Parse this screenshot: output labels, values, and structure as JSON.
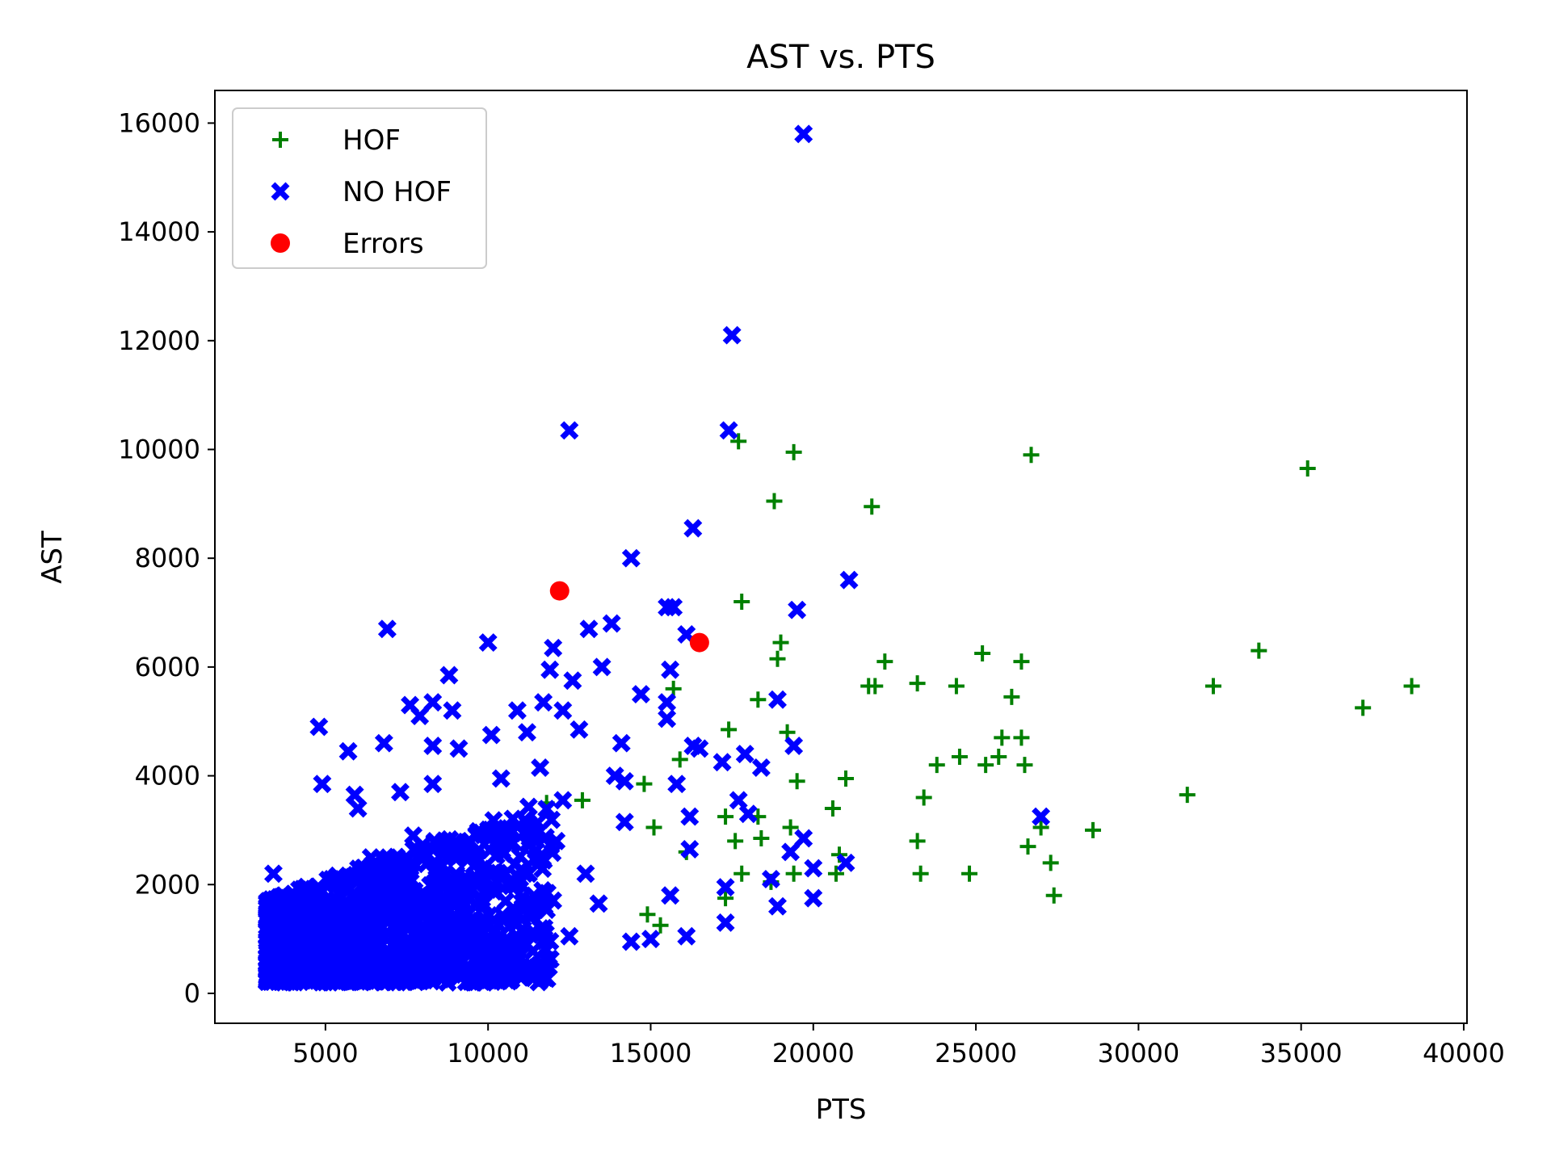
{
  "chart_data": {
    "type": "scatter",
    "title": "AST vs. PTS",
    "xlabel": "PTS",
    "ylabel": "AST",
    "xlim": [
      1600,
      40100
    ],
    "ylim": [
      -550,
      16600
    ],
    "xticks": [
      "5000",
      "10000",
      "15000",
      "20000",
      "25000",
      "30000",
      "35000",
      "40000"
    ],
    "yticks": [
      "0",
      "2000",
      "4000",
      "6000",
      "8000",
      "10000",
      "12000",
      "14000",
      "16000"
    ],
    "grid": false,
    "legend_position": "upper-left",
    "colors": {
      "HOF": "#008000",
      "NO HOF": "#0000ff",
      "Errors": "#ff0000"
    },
    "series": [
      {
        "name": "HOF",
        "marker": "plus",
        "points": [
          [
            17700,
            10150
          ],
          [
            19400,
            9950
          ],
          [
            26700,
            9900
          ],
          [
            35200,
            9650
          ],
          [
            18800,
            9050
          ],
          [
            21800,
            8950
          ],
          [
            17800,
            7200
          ],
          [
            19000,
            6450
          ],
          [
            18900,
            6150
          ],
          [
            22200,
            6100
          ],
          [
            25200,
            6250
          ],
          [
            26400,
            6100
          ],
          [
            33700,
            6300
          ],
          [
            21700,
            5650
          ],
          [
            21900,
            5650
          ],
          [
            23200,
            5700
          ],
          [
            24400,
            5650
          ],
          [
            32300,
            5650
          ],
          [
            38400,
            5650
          ],
          [
            26100,
            5450
          ],
          [
            36900,
            5250
          ],
          [
            18300,
            5400
          ],
          [
            17400,
            4850
          ],
          [
            19200,
            4800
          ],
          [
            25800,
            4700
          ],
          [
            26400,
            4700
          ],
          [
            23800,
            4200
          ],
          [
            24500,
            4350
          ],
          [
            25700,
            4350
          ],
          [
            25300,
            4200
          ],
          [
            26500,
            4200
          ],
          [
            15900,
            4300
          ],
          [
            14800,
            3850
          ],
          [
            19500,
            3900
          ],
          [
            21000,
            3950
          ],
          [
            23400,
            3600
          ],
          [
            31500,
            3650
          ],
          [
            11800,
            3500
          ],
          [
            20600,
            3400
          ],
          [
            17300,
            3250
          ],
          [
            18300,
            3250
          ],
          [
            27000,
            3050
          ],
          [
            28600,
            3000
          ],
          [
            19300,
            3050
          ],
          [
            15100,
            3050
          ],
          [
            18400,
            2850
          ],
          [
            17600,
            2800
          ],
          [
            23200,
            2800
          ],
          [
            26600,
            2700
          ],
          [
            27300,
            2400
          ],
          [
            20800,
            2550
          ],
          [
            19400,
            2200
          ],
          [
            17800,
            2200
          ],
          [
            20700,
            2200
          ],
          [
            23300,
            2200
          ],
          [
            24800,
            2200
          ],
          [
            18700,
            2050
          ],
          [
            27400,
            1800
          ],
          [
            17300,
            1750
          ],
          [
            14900,
            1450
          ],
          [
            15300,
            1250
          ],
          [
            15700,
            5600
          ],
          [
            12900,
            3550
          ],
          [
            16100,
            2600
          ]
        ]
      },
      {
        "name": "NO HOF",
        "marker": "x",
        "points": [
          [
            19700,
            15800
          ],
          [
            17500,
            12100
          ],
          [
            12500,
            10350
          ],
          [
            17400,
            10350
          ],
          [
            16300,
            8550
          ],
          [
            14400,
            8000
          ],
          [
            21100,
            7600
          ],
          [
            15500,
            7100
          ],
          [
            15700,
            7100
          ],
          [
            19500,
            7050
          ],
          [
            6900,
            6700
          ],
          [
            13100,
            6700
          ],
          [
            13800,
            6800
          ],
          [
            16100,
            6600
          ],
          [
            10000,
            6450
          ],
          [
            12000,
            6350
          ],
          [
            13500,
            6000
          ],
          [
            11900,
            5950
          ],
          [
            15600,
            5950
          ],
          [
            12600,
            5750
          ],
          [
            8800,
            5850
          ],
          [
            14700,
            5500
          ],
          [
            15500,
            5350
          ],
          [
            15500,
            5050
          ],
          [
            18900,
            5400
          ],
          [
            8300,
            5350
          ],
          [
            7600,
            5300
          ],
          [
            11700,
            5350
          ],
          [
            10900,
            5200
          ],
          [
            8900,
            5200
          ],
          [
            12300,
            5200
          ],
          [
            7900,
            5100
          ],
          [
            4800,
            4900
          ],
          [
            11200,
            4800
          ],
          [
            12800,
            4850
          ],
          [
            10100,
            4750
          ],
          [
            5700,
            4450
          ],
          [
            6800,
            4600
          ],
          [
            8300,
            4550
          ],
          [
            9100,
            4500
          ],
          [
            14100,
            4600
          ],
          [
            16300,
            4550
          ],
          [
            16500,
            4500
          ],
          [
            19400,
            4550
          ],
          [
            17900,
            4400
          ],
          [
            11600,
            4150
          ],
          [
            10400,
            3950
          ],
          [
            13900,
            4000
          ],
          [
            14200,
            3900
          ],
          [
            15800,
            3850
          ],
          [
            17200,
            4250
          ],
          [
            18400,
            4150
          ],
          [
            8300,
            3850
          ],
          [
            4900,
            3850
          ],
          [
            5900,
            3650
          ],
          [
            7300,
            3700
          ],
          [
            6000,
            3400
          ],
          [
            12300,
            3550
          ],
          [
            17700,
            3550
          ],
          [
            18000,
            3300
          ],
          [
            16200,
            3250
          ],
          [
            27000,
            3250
          ],
          [
            14200,
            3150
          ],
          [
            11200,
            3000
          ],
          [
            19700,
            2850
          ],
          [
            19300,
            2600
          ],
          [
            16200,
            2650
          ],
          [
            21000,
            2400
          ],
          [
            18700,
            2100
          ],
          [
            20000,
            2300
          ],
          [
            17300,
            1950
          ],
          [
            18900,
            1600
          ],
          [
            20000,
            1750
          ],
          [
            16100,
            1050
          ],
          [
            15000,
            1000
          ],
          [
            14400,
            950
          ],
          [
            17300,
            1300
          ],
          [
            12500,
            1050
          ],
          [
            10700,
            650
          ],
          [
            11200,
            900
          ],
          [
            13400,
            1650
          ],
          [
            15600,
            1800
          ],
          [
            9300,
            1200
          ],
          [
            7700,
            2900
          ],
          [
            6400,
            2500
          ],
          [
            9800,
            2200
          ],
          [
            5100,
            1200
          ],
          [
            8600,
            900
          ],
          [
            3500,
            1500
          ],
          [
            4300,
            400
          ],
          [
            12100,
            2800
          ],
          [
            13000,
            2200
          ],
          [
            3400,
            2200
          ]
        ],
        "dense_region": {
          "x": [
            3200,
            12000
          ],
          "y": [
            200,
            3000
          ],
          "count": 1400,
          "seed": 7
        }
      },
      {
        "name": "Errors",
        "marker": "circle",
        "points": [
          [
            12200,
            7400
          ],
          [
            16500,
            6450
          ]
        ]
      }
    ]
  }
}
